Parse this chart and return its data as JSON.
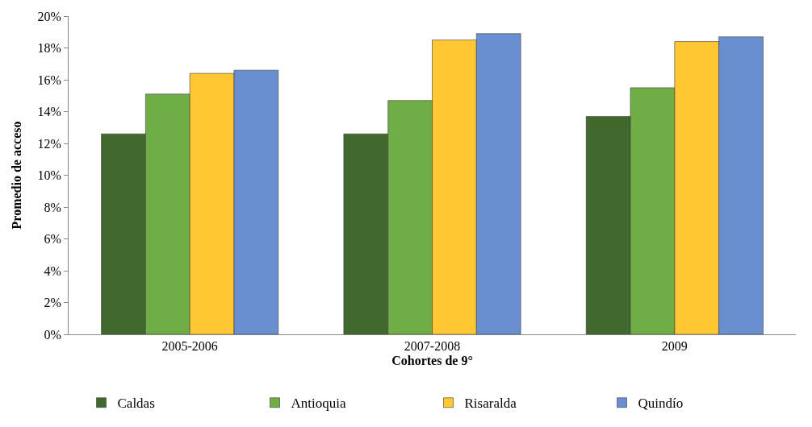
{
  "chart_data": {
    "type": "bar",
    "xlabel": "Cohortes de 9°",
    "ylabel": "Promedio de acceso",
    "categories": [
      "2005-2006",
      "2007-2008",
      "2009"
    ],
    "series": [
      {
        "name": "Caldas",
        "color": "#41682d",
        "values": [
          12.6,
          12.6,
          13.7
        ]
      },
      {
        "name": "Antioquia",
        "color": "#70ad47",
        "values": [
          15.1,
          14.7,
          15.5
        ]
      },
      {
        "name": "Risaralda",
        "color": "#ffc832",
        "values": [
          16.4,
          18.5,
          18.4
        ]
      },
      {
        "name": "Quindío",
        "color": "#6a8fd0",
        "values": [
          16.6,
          18.9,
          18.7
        ]
      }
    ],
    "ylim": [
      0,
      20
    ],
    "yticks": [
      {
        "value": 0,
        "label": "0%"
      },
      {
        "value": 2,
        "label": "2%"
      },
      {
        "value": 4,
        "label": "4%"
      },
      {
        "value": 6,
        "label": "6%"
      },
      {
        "value": 8,
        "label": "8%"
      },
      {
        "value": 10,
        "label": "10%"
      },
      {
        "value": 12,
        "label": "12%"
      },
      {
        "value": 14,
        "label": "14%"
      },
      {
        "value": 16,
        "label": "16%"
      },
      {
        "value": 18,
        "label": "18%"
      },
      {
        "value": 20,
        "label": "20%"
      }
    ],
    "legend": "bottom"
  }
}
